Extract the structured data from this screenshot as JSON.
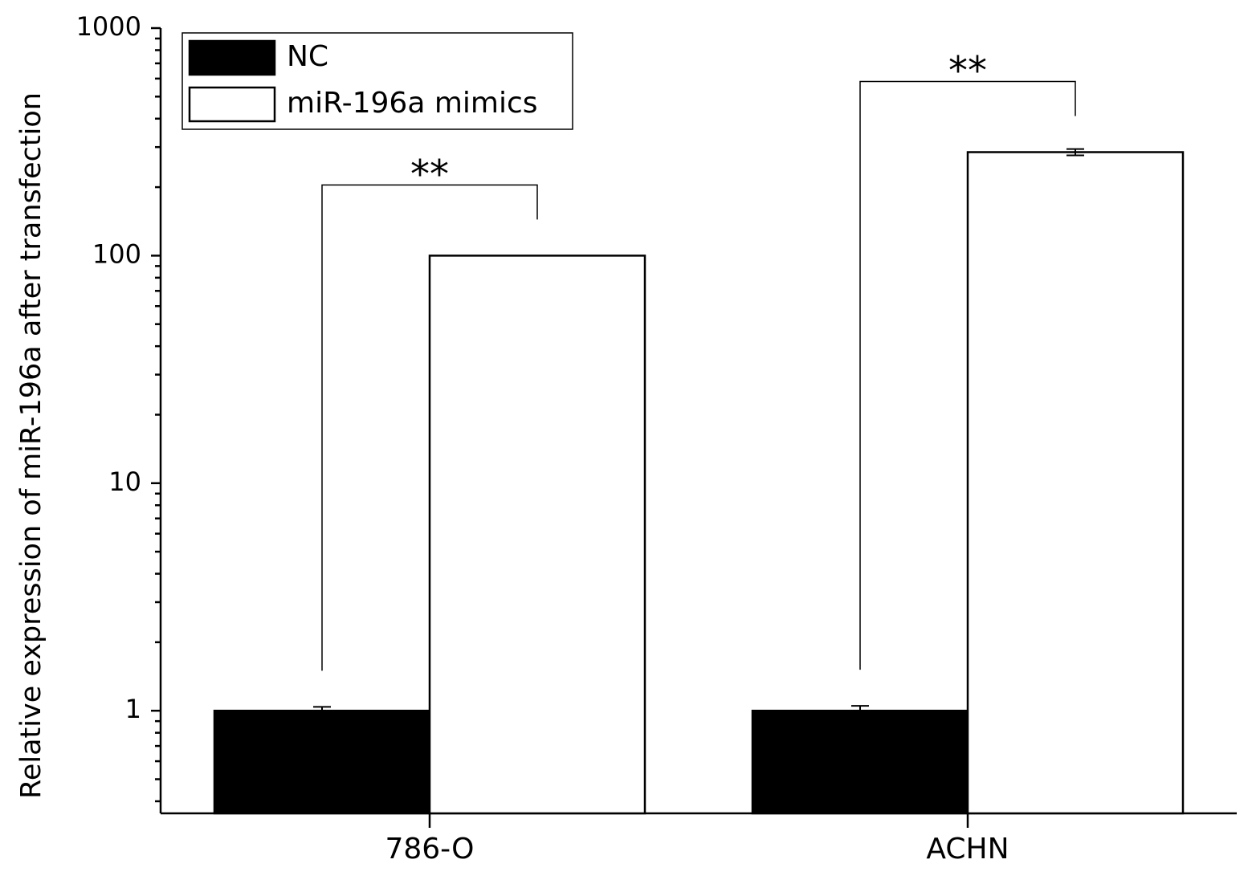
{
  "chart_data": {
    "type": "bar",
    "y_label": "Relative expression of miR-196a after transfection",
    "categories": [
      "786-O",
      "ACHN"
    ],
    "series": [
      {
        "name": "NC",
        "color": "#000000",
        "values": [
          1.0,
          1.0
        ],
        "errors": [
          0.04,
          0.05
        ]
      },
      {
        "name": "miR-196a mimics",
        "color": "#ffffff",
        "values": [
          100,
          285
        ],
        "errors": [
          null,
          9
        ]
      }
    ],
    "log_scale": true,
    "ylim": [
      0.354,
      1000
    ],
    "yticks": [
      1,
      10,
      100,
      1000
    ],
    "yticks_minor": [
      0.4,
      0.5,
      0.6,
      0.7,
      0.8,
      0.9,
      2,
      3,
      4,
      5,
      6,
      7,
      8,
      9,
      20,
      30,
      40,
      50,
      60,
      70,
      80,
      90,
      200,
      300,
      400,
      500,
      600,
      700,
      800,
      900
    ],
    "legend": "upper left",
    "annotations": [
      {
        "text": "**",
        "category": 0
      },
      {
        "text": "**",
        "category": 1
      }
    ]
  }
}
